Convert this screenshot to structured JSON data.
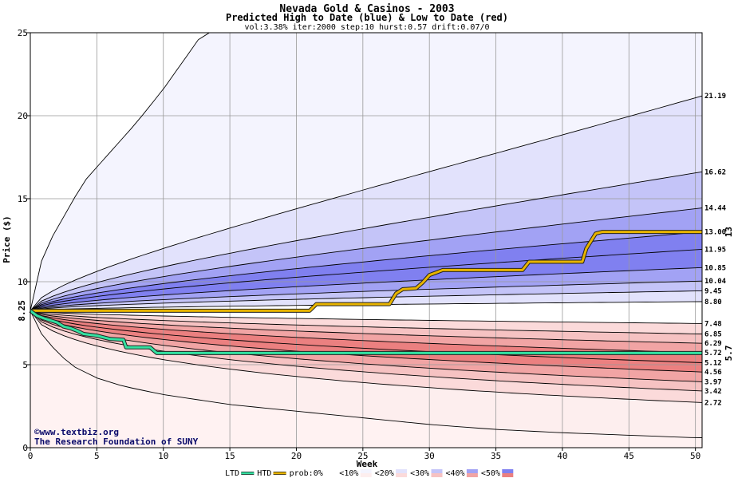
{
  "chart_data": {
    "type": "area",
    "title": "Nevada Gold & Casinos - 2003",
    "subtitle": "Predicted High to Date (blue) &  Low to Date (red)",
    "params": "vol:3.38% iter:2000 step:10 hurst:0.57 drift:0.07/0",
    "xlabel": "Week",
    "ylabel": "Price ($)",
    "xlim": [
      0,
      50.5
    ],
    "ylim": [
      0,
      25
    ],
    "x_ticks": [
      0,
      5,
      10,
      15,
      20,
      25,
      30,
      35,
      40,
      45,
      50
    ],
    "y_ticks": [
      0,
      5,
      10,
      15,
      20,
      25
    ],
    "grid": true,
    "start_price": 8.25,
    "start_label": "8.25",
    "high_quantiles": [
      {
        "end": 21.19,
        "label": "21.19"
      },
      {
        "end": 16.62,
        "label": "16.62"
      },
      {
        "end": 14.44,
        "label": "14.44"
      },
      {
        "end": 13.0,
        "label": "13.00"
      },
      {
        "end": 11.95,
        "label": "11.95"
      },
      {
        "end": 10.85,
        "label": "10.85"
      },
      {
        "end": 10.04,
        "label": "10.04"
      },
      {
        "end": 9.45,
        "label": "9.45"
      },
      {
        "end": 8.8,
        "label": "8.80"
      }
    ],
    "low_quantiles": [
      {
        "end": 7.48,
        "label": "7.48"
      },
      {
        "end": 6.85,
        "label": "6.85"
      },
      {
        "end": 6.29,
        "label": "6.29"
      },
      {
        "end": 5.72,
        "label": "5.72"
      },
      {
        "end": 5.12,
        "label": "5.12"
      },
      {
        "end": 4.56,
        "label": "4.56"
      },
      {
        "end": 3.97,
        "label": "3.97"
      },
      {
        "end": 3.42,
        "label": "3.42"
      },
      {
        "end": 2.72,
        "label": "2.72"
      }
    ],
    "outer_high_curve": {
      "x": [
        0,
        1,
        2,
        3,
        4,
        6,
        8,
        10,
        13
      ],
      "y": [
        8.25,
        11.8,
        13.2,
        14.6,
        16.0,
        17.8,
        19.6,
        21.6,
        25.0
      ]
    },
    "outer_low_curve": {
      "x": [
        0,
        1,
        2,
        3,
        4,
        5,
        7,
        10,
        15,
        20,
        25,
        30,
        35,
        40,
        45,
        50
      ],
      "y": [
        8.25,
        6.6,
        5.8,
        5.0,
        4.6,
        4.2,
        3.7,
        3.2,
        2.6,
        2.2,
        1.8,
        1.4,
        1.1,
        0.9,
        0.75,
        0.6
      ]
    },
    "series": [
      {
        "name": "HTD",
        "color": "#e8b400",
        "x": [
          0,
          21,
          21.5,
          27,
          27.5,
          28,
          29,
          29.5,
          30,
          30.5,
          31,
          37,
          37.5,
          41.5,
          41.8,
          42.5,
          43,
          50.5
        ],
        "y": [
          8.25,
          8.25,
          8.65,
          8.65,
          9.3,
          9.55,
          9.6,
          9.95,
          10.4,
          10.55,
          10.7,
          10.7,
          11.2,
          11.2,
          12.0,
          12.9,
          13.0,
          13.0
        ]
      },
      {
        "name": "LTD",
        "color": "#33e0a0",
        "x": [
          0,
          0.5,
          1,
          2,
          2.5,
          3,
          3.5,
          4,
          5,
          6,
          7,
          7.2,
          9,
          9.5,
          50.5
        ],
        "y": [
          8.25,
          7.95,
          7.8,
          7.55,
          7.3,
          7.2,
          7.05,
          6.85,
          6.75,
          6.55,
          6.5,
          6.05,
          6.05,
          5.7,
          5.7
        ]
      }
    ],
    "right_markers": [
      {
        "label": "13",
        "value": 13.0,
        "color": "#b08000"
      },
      {
        "label": "5.7",
        "value": 5.7,
        "color": "#2e8b57"
      }
    ],
    "legend": {
      "items": [
        {
          "label": "LTD",
          "color": "#33e0a0",
          "kind": "line"
        },
        {
          "label": "HTD",
          "color": "#e8b400",
          "kind": "line"
        },
        {
          "label": "prob:0%",
          "kind": "swatch",
          "blue": "#ffffff",
          "red": "#ffffff"
        },
        {
          "label": "<10%",
          "kind": "swatch",
          "blue": "#f4f4fe",
          "red": "#fdeeee"
        },
        {
          "label": "<20%",
          "kind": "swatch",
          "blue": "#e2e2fc",
          "red": "#fbdada"
        },
        {
          "label": "<30%",
          "kind": "swatch",
          "blue": "#c4c4f8",
          "red": "#f6c2c2"
        },
        {
          "label": "<40%",
          "kind": "swatch",
          "blue": "#a2a2f4",
          "red": "#f1a4a4"
        },
        {
          "label": "<50%",
          "kind": "swatch",
          "blue": "#8080f0",
          "red": "#eb8080"
        }
      ],
      "placement": "bottom"
    },
    "band_colors_high": [
      "#f4f4fe",
      "#e2e2fc",
      "#c4c4f8",
      "#a2a2f4",
      "#8080f0",
      "#8080f0",
      "#a2a2f4",
      "#c4c4f8",
      "#e2e2fc"
    ],
    "band_colors_low": [
      "#fbdada",
      "#f6c2c2",
      "#f1a4a4",
      "#eb8080",
      "#eb8080",
      "#f1a4a4",
      "#f6c2c2",
      "#fbdada",
      "#fdeeee"
    ],
    "credit_lines": [
      "©www.textbiz.org",
      "The Research Foundation of SUNY"
    ]
  }
}
